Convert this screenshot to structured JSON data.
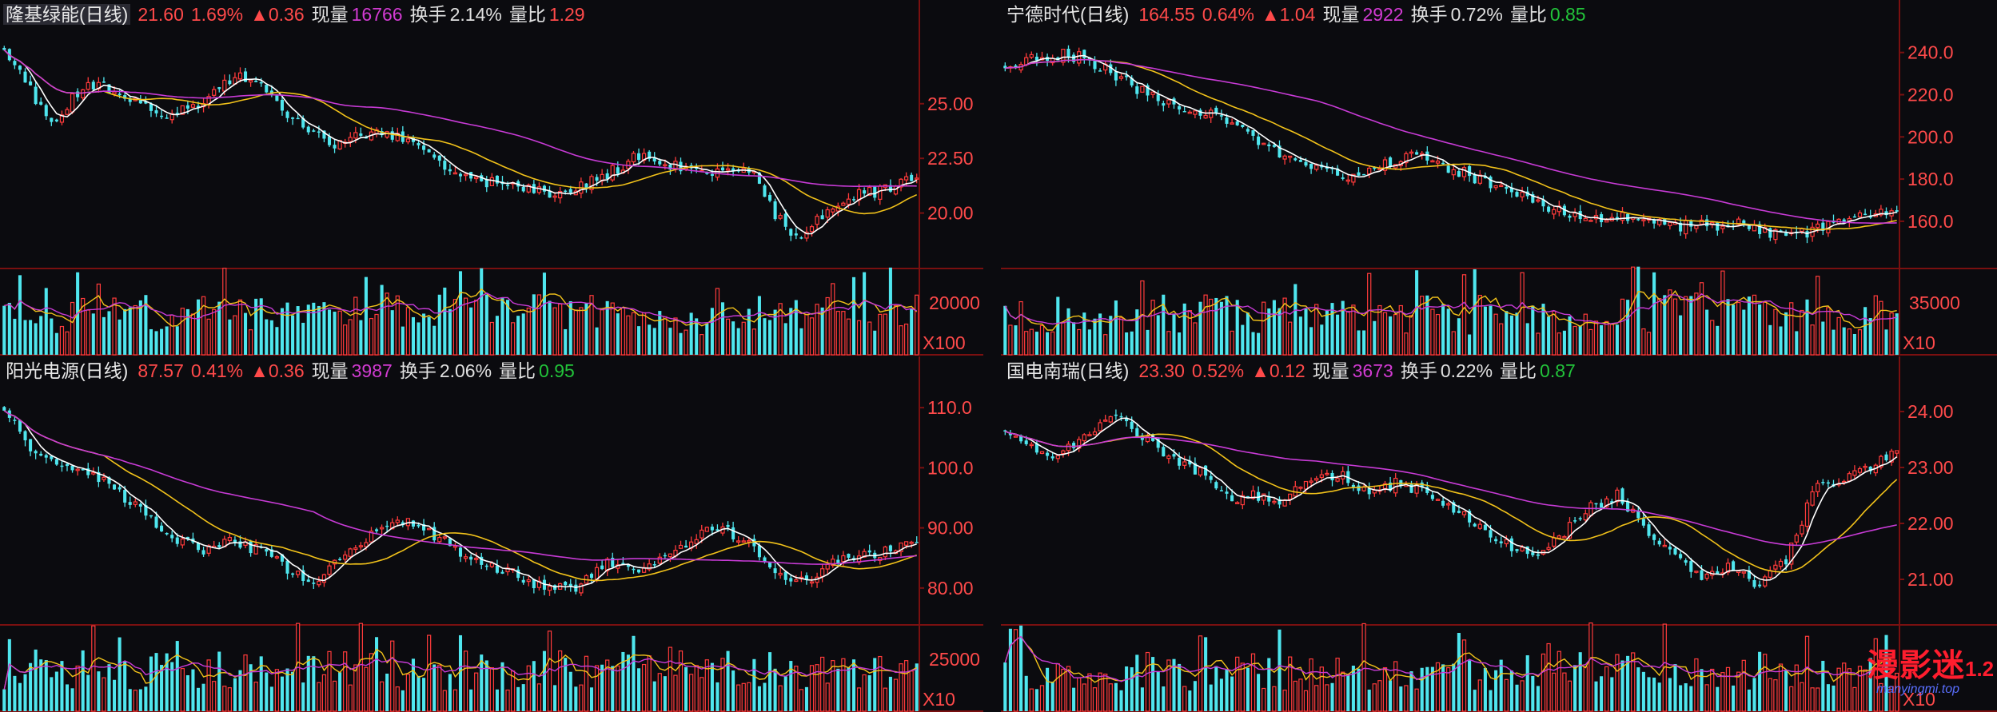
{
  "colors": {
    "up": "#ff3b3b",
    "down": "#4fe6ee",
    "ma_white": "#ffffff",
    "ma_yellow": "#f2c21a",
    "ma_magenta": "#c83bd6",
    "border": "#7a1010"
  },
  "chart_data": [
    {
      "type": "candlestick",
      "header": {
        "name": "隆基绿能(日线)",
        "price": "21.60",
        "pct": "1.69%",
        "chg": "▲0.36",
        "vol_label": "现量",
        "vol": "16766",
        "turn_label": "换手",
        "turn": "2.14%",
        "ratio_label": "量比",
        "ratio": "1.29"
      },
      "price_ticks": [
        "25.00",
        "22.50",
        "20.00"
      ],
      "volume_ticks": [
        "20000"
      ],
      "volume_unit": "X100",
      "ylim": [
        17.5,
        28.5
      ],
      "path": [
        27.6,
        25.9,
        24.0,
        25.3,
        26.0,
        25.4,
        24.9,
        24.6,
        24.8,
        25.7,
        26.2,
        25.7,
        24.6,
        23.8,
        23.0,
        23.5,
        23.9,
        23.4,
        22.8,
        22.1,
        21.6,
        21.3,
        21.2,
        21.0,
        20.9,
        21.4,
        21.9,
        22.6,
        22.3,
        22.1,
        21.9,
        22.1,
        21.8,
        19.9,
        18.8,
        19.9,
        20.7,
        20.9,
        21.2,
        21.6
      ]
    },
    {
      "type": "candlestick",
      "header": {
        "name": "宁德时代(日线)",
        "price": "164.55",
        "pct": "0.64%",
        "chg": "▲1.04",
        "vol_label": "现量",
        "vol": "2922",
        "turn_label": "换手",
        "turn": "0.72%",
        "ratio_label": "量比",
        "ratio": "0.85"
      },
      "price_ticks": [
        "240.0",
        "220.0",
        "200.0",
        "180.0",
        "160.0"
      ],
      "volume_ticks": [
        "35000"
      ],
      "volume_unit": "X10",
      "ylim": [
        138,
        252
      ],
      "path": [
        234,
        237,
        239,
        237,
        230,
        222,
        216,
        213,
        208,
        201,
        193,
        188,
        184,
        181,
        187,
        191,
        187,
        183,
        177,
        172,
        168,
        162,
        160,
        162,
        159,
        158,
        158,
        159,
        155,
        152,
        156,
        161,
        162,
        164.5
      ]
    },
    {
      "type": "candlestick",
      "header": {
        "name": "阳光电源(日线)",
        "price": "87.57",
        "pct": "0.41%",
        "chg": "▲0.36",
        "vol_label": "现量",
        "vol": "3987",
        "turn_label": "换手",
        "turn": "2.06%",
        "ratio_label": "量比",
        "ratio": "0.95"
      },
      "price_ticks": [
        "110.0",
        "100.0",
        "90.00",
        "80.00"
      ],
      "volume_ticks": [
        "25000"
      ],
      "volume_unit": "X10",
      "ylim": [
        74,
        114
      ],
      "path": [
        110,
        103,
        101,
        99,
        96,
        92,
        88,
        86,
        88,
        86,
        83,
        81,
        86,
        89,
        91,
        89,
        86,
        84,
        82,
        80,
        80,
        84,
        83,
        85,
        88,
        90,
        88,
        83,
        81,
        84,
        85,
        86,
        87.6
      ]
    },
    {
      "type": "candlestick",
      "header": {
        "name": "国电南瑞(日线)",
        "price": "23.30",
        "pct": "0.52%",
        "chg": "▲0.12",
        "vol_label": "现量",
        "vol": "3673",
        "turn_label": "换手",
        "turn": "0.22%",
        "ratio_label": "量比",
        "ratio": "0.87"
      },
      "price_ticks": [
        "24.00",
        "23.00",
        "22.00",
        "21.00"
      ],
      "volume_ticks": [],
      "volume_unit": "X10",
      "ylim": [
        20.2,
        24.5
      ],
      "path": [
        23.7,
        23.4,
        23.2,
        23.6,
        23.9,
        23.5,
        23.1,
        22.9,
        22.4,
        22.5,
        22.4,
        22.8,
        22.9,
        22.5,
        22.7,
        22.6,
        22.3,
        22.0,
        21.6,
        21.4,
        21.8,
        22.3,
        22.5,
        21.9,
        21.4,
        21.0,
        21.2,
        20.9,
        21.3,
        22.6,
        22.8,
        23.0,
        23.3
      ]
    }
  ],
  "watermark": {
    "text": "漫影迷",
    "badge": "1.2",
    "url": "manyingmi.top"
  }
}
